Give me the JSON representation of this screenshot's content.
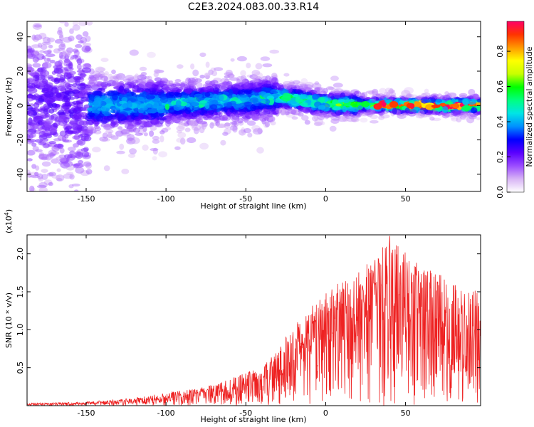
{
  "figure": {
    "title": "C2E3.2024.083.00.33.R14"
  },
  "chart_data": [
    {
      "type": "heatmap",
      "xlabel": "Height of straight line (km)",
      "ylabel": "Frequency (Hz)",
      "xlim": [
        -187,
        97
      ],
      "ylim": [
        -50,
        49
      ],
      "x_ticks": [
        -150,
        -100,
        -50,
        0,
        50
      ],
      "y_ticks": [
        -40,
        -20,
        0,
        20,
        40
      ],
      "colorbar": {
        "label": "Normalized spectral amplitude",
        "range": [
          0,
          0.97
        ],
        "ticks": [
          0.0,
          0.2,
          0.4,
          0.6,
          0.8
        ],
        "tick_labels": [
          "0.0",
          "0.2",
          "0.4",
          "0.6",
          "0.8"
        ],
        "colormap": [
          "#ffffff",
          "#d8b4f5",
          "#9b4dff",
          "#5a00ff",
          "#0000ff",
          "#0090ff",
          "#00e5e5",
          "#00ff80",
          "#00ff00",
          "#c8ff00",
          "#ffff00",
          "#ff9900",
          "#ff3300",
          "#ff0066"
        ]
      },
      "grid": false,
      "ridge": {
        "description_points": [
          {
            "x": -185,
            "y": 1
          },
          {
            "x": -150,
            "y": 0
          },
          {
            "x": -100,
            "y": 1
          },
          {
            "x": -50,
            "y": 3
          },
          {
            "x": -28,
            "y": 5
          },
          {
            "x": 0,
            "y": 1
          },
          {
            "x": 50,
            "y": 0
          },
          {
            "x": 95,
            "y": 0
          }
        ]
      }
    },
    {
      "type": "line",
      "xlabel": "Height of straight line (km)",
      "ylabel": "SNR (10 * v/v)",
      "y_multiplier": "(x10",
      "y_multiplier_exp": "4",
      "xlim": [
        -187,
        97
      ],
      "ylim": [
        0,
        2.25
      ],
      "x_ticks": [
        -150,
        -100,
        -50,
        0,
        50
      ],
      "y_ticks": [
        0.5,
        1.0,
        1.5,
        2.0
      ],
      "y_tick_labels": [
        "0.5",
        "1.0",
        "1.5",
        "2.0"
      ],
      "color": "#ee2222",
      "grid": false,
      "envelope": [
        {
          "x": -187,
          "y": 0.03
        },
        {
          "x": -150,
          "y": 0.05
        },
        {
          "x": -120,
          "y": 0.1
        },
        {
          "x": -100,
          "y": 0.17
        },
        {
          "x": -75,
          "y": 0.25
        },
        {
          "x": -60,
          "y": 0.35
        },
        {
          "x": -50,
          "y": 0.45
        },
        {
          "x": -40,
          "y": 0.5
        },
        {
          "x": -30,
          "y": 0.75
        },
        {
          "x": -20,
          "y": 1.05
        },
        {
          "x": -10,
          "y": 1.3
        },
        {
          "x": 5,
          "y": 1.6
        },
        {
          "x": 20,
          "y": 1.75
        },
        {
          "x": 30,
          "y": 1.95
        },
        {
          "x": 40,
          "y": 2.25
        },
        {
          "x": 55,
          "y": 1.9
        },
        {
          "x": 70,
          "y": 1.75
        },
        {
          "x": 85,
          "y": 1.55
        },
        {
          "x": 97,
          "y": 1.6
        }
      ]
    }
  ]
}
